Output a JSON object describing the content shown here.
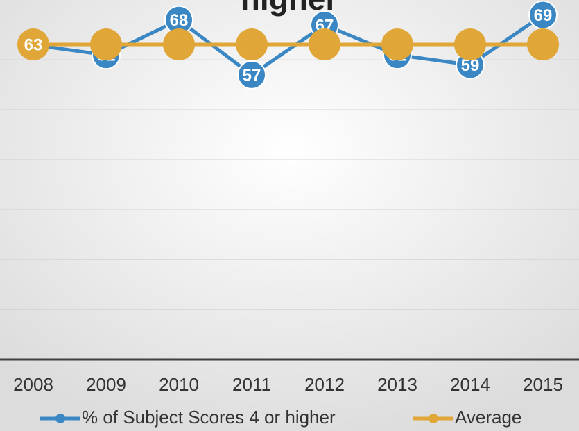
{
  "chart_data": {
    "type": "line",
    "title": "higher",
    "categories": [
      "2008",
      "2009",
      "2010",
      "2011",
      "2012",
      "2013",
      "2014",
      "2015"
    ],
    "series": [
      {
        "name": "% of Subject Scores 4 or higher",
        "color": "#3a87c4",
        "values": [
          63,
          61,
          68,
          57,
          67,
          61,
          59,
          69
        ]
      },
      {
        "name": "Average",
        "color": "#e0a637",
        "values": [
          63.1,
          63.1,
          63.1,
          63.1,
          63.1,
          63.1,
          63.1,
          63.1
        ],
        "value_labels": [
          "63",
          null,
          null,
          null,
          null,
          null,
          null,
          null
        ]
      }
    ],
    "ylim": [
      0,
      72
    ],
    "yticks": [
      0,
      10,
      20,
      30,
      40,
      50,
      60
    ],
    "grid": true,
    "legend": "bottom"
  }
}
